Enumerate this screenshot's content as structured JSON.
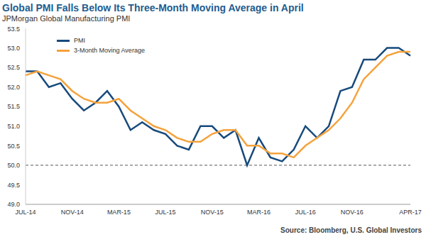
{
  "chart_data": {
    "type": "line",
    "title": "Global PMI Falls Below Its Three-Month Moving Average in April",
    "subtitle": "JPMorgan Global Manufacturing PMI",
    "source": "Source: Bloomberg, U.S. Global Investors",
    "categories": [
      "JUL-14",
      null,
      null,
      null,
      "NOV-14",
      null,
      null,
      null,
      "MAR-15",
      null,
      null,
      null,
      "JUL-15",
      null,
      null,
      null,
      "NOV-15",
      null,
      null,
      null,
      "MAR-16",
      null,
      null,
      null,
      "JUL-16",
      null,
      null,
      null,
      "NOV-16",
      null,
      null,
      null,
      null,
      "APR-17"
    ],
    "series": [
      {
        "name": "PMI",
        "color": "#174a7c",
        "values": [
          52.4,
          52.4,
          52.0,
          52.1,
          51.7,
          51.4,
          51.6,
          51.9,
          51.5,
          50.9,
          51.1,
          50.9,
          50.8,
          50.5,
          50.4,
          51.0,
          51.0,
          50.7,
          50.9,
          50.0,
          50.7,
          50.2,
          50.1,
          50.4,
          51.0,
          50.7,
          51.0,
          51.9,
          52.0,
          52.7,
          52.7,
          53.0,
          53.0,
          52.8
        ]
      },
      {
        "name": "3-Month Moving Average",
        "color": "#f5a23c",
        "values": [
          52.3,
          52.4,
          52.3,
          52.2,
          51.9,
          51.7,
          51.6,
          51.6,
          51.7,
          51.4,
          51.2,
          51.0,
          50.9,
          50.7,
          50.6,
          50.6,
          50.8,
          50.9,
          50.9,
          50.5,
          50.5,
          50.3,
          50.3,
          50.2,
          50.5,
          50.7,
          50.9,
          51.2,
          51.6,
          52.2,
          52.5,
          52.8,
          52.9,
          52.9
        ]
      }
    ],
    "ylim": [
      49.0,
      53.5
    ],
    "yticks": [
      {
        "value": 49,
        "label": "49.0"
      },
      49.5,
      {
        "value": 50,
        "label": "50.0"
      },
      50.5,
      {
        "value": 51,
        "label": "51.0"
      },
      51.5,
      {
        "value": 52,
        "label": "52.0"
      },
      52.5,
      {
        "value": 53,
        "label": "53.0"
      },
      53.5
    ],
    "reference_line": 50.0,
    "grid": false,
    "legend": "top-left"
  }
}
